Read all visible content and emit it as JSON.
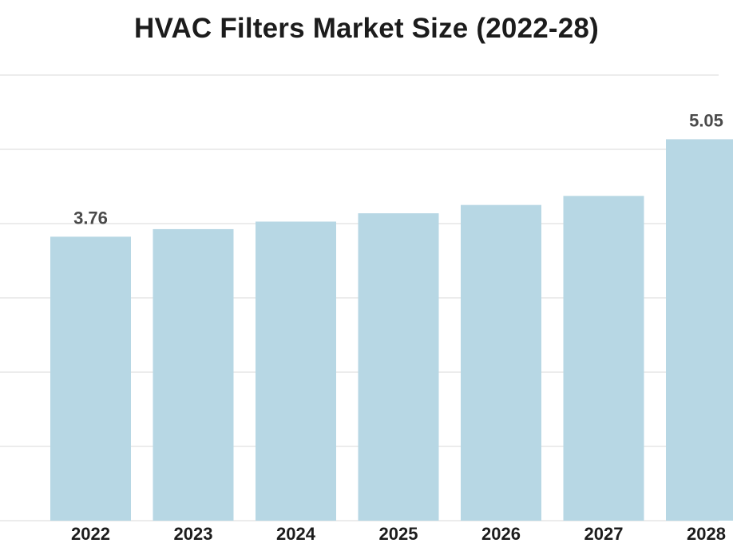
{
  "chart_data": {
    "type": "bar",
    "title": "HVAC Filters Market Size (2022-28)",
    "categories": [
      "2022",
      "2023",
      "2024",
      "2025",
      "2026",
      "2027",
      "2028"
    ],
    "values": [
      3.76,
      3.86,
      3.96,
      4.07,
      4.18,
      4.3,
      5.05
    ],
    "data_labels": [
      "3.76",
      "",
      "",
      "",
      "",
      "",
      "5.05"
    ],
    "ylim": [
      0,
      5.9
    ],
    "grid": true,
    "bar_color": "#b7d7e4",
    "grid_color": "#d9d9d9",
    "title_color": "#1c1c1c",
    "label_color": "#4a4a4a"
  }
}
